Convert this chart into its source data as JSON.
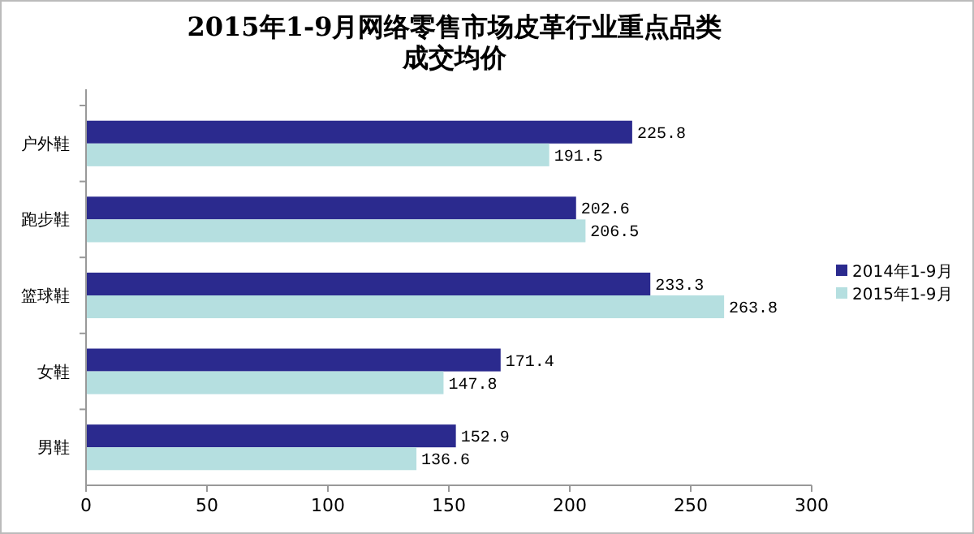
{
  "chart_data": {
    "type": "bar",
    "orientation": "horizontal",
    "title": "2015年1-9月网络零售市场皮革行业重点品类成交均价",
    "categories": [
      "户外鞋",
      "跑步鞋",
      "篮球鞋",
      "女鞋",
      "男鞋"
    ],
    "series": [
      {
        "name": "2014年1-9月",
        "color": "#2b2a8e",
        "values": [
          225.8,
          202.6,
          233.3,
          171.4,
          152.9
        ]
      },
      {
        "name": "2015年1-9月",
        "color": "#b5dfe0",
        "values": [
          191.5,
          206.5,
          263.8,
          147.8,
          136.6
        ]
      }
    ],
    "xlim": [
      0,
      300
    ],
    "xticks": [
      0,
      50,
      100,
      150,
      200,
      250,
      300
    ],
    "data_labels": true,
    "legend": "right",
    "grid": false
  }
}
